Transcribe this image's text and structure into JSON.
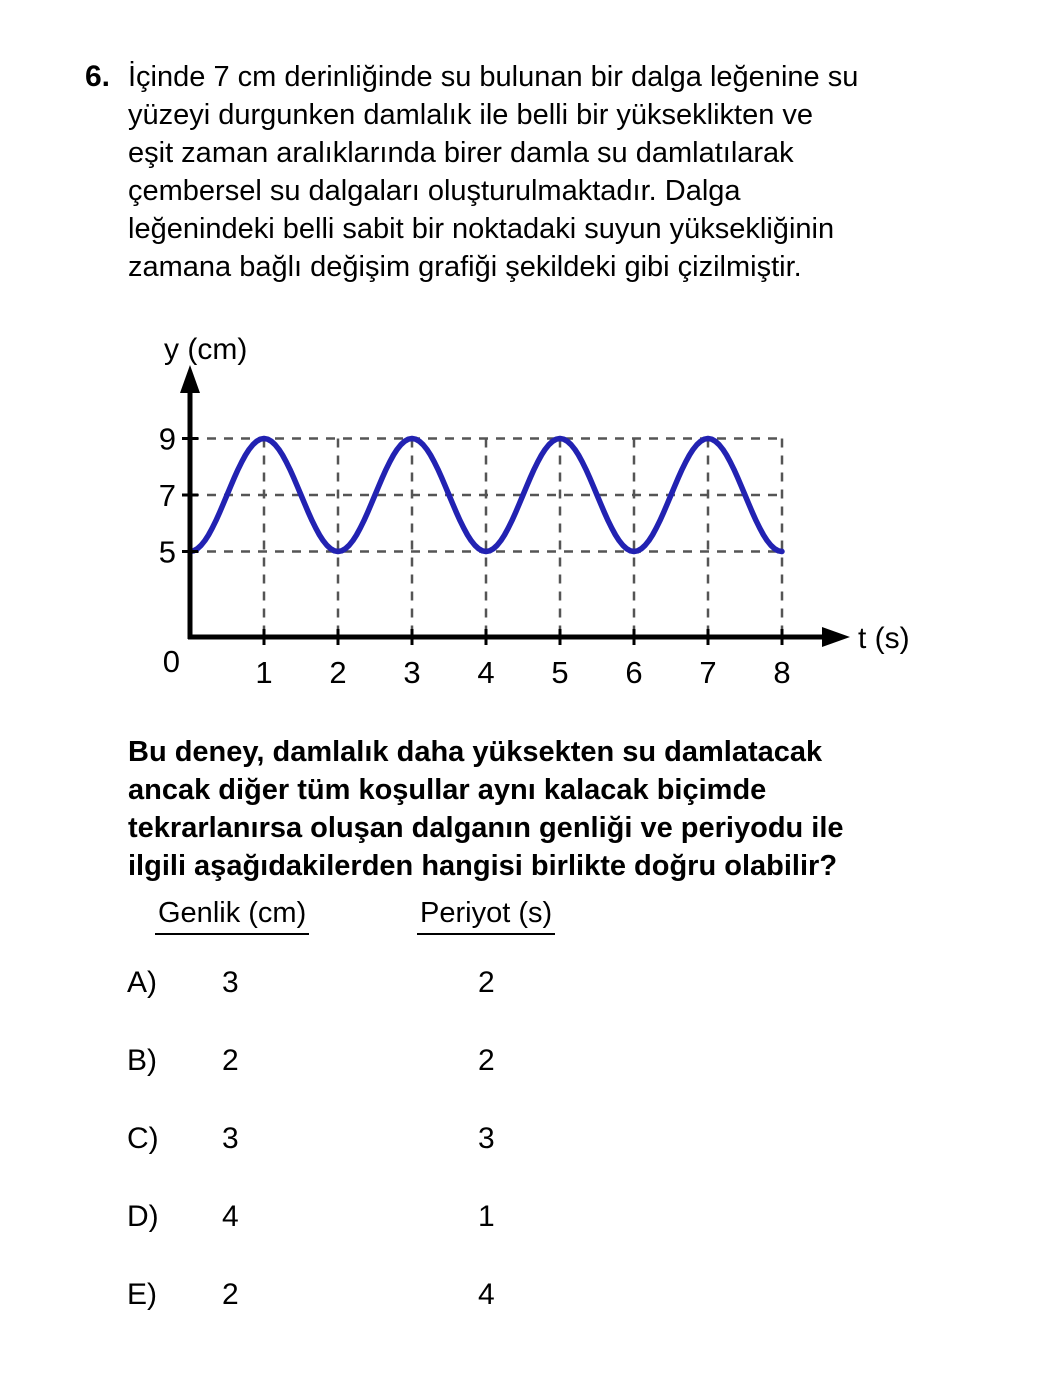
{
  "question": {
    "number": "6.",
    "intro_lines": [
      "İçinde 7 cm derinliğinde su bulunan bir dalga leğenine su",
      "yüzeyi durgunken damlalık ile belli bir yükseklikten ve",
      "eşit zaman aralıklarında birer damla su damlatılarak",
      "çembersel su dalgaları oluşturulmaktadır. Dalga",
      "leğenindeki belli sabit bir noktadaki suyun yüksekliğinin",
      "zamana bağlı değişim grafiği şekildeki gibi çizilmiştir."
    ],
    "prompt_lines": [
      "Bu deney, damlalık daha yüksekten su damlatacak",
      "ancak diğer tüm koşullar aynı kalacak biçimde",
      "tekrarlanırsa oluşan dalganın genliği ve periyodu ile",
      "ilgili aşağıdakilerden hangisi birlikte doğru olabilir?"
    ]
  },
  "options": {
    "col1_header": "Genlik (cm)",
    "col2_header": "Periyot (s)",
    "rows": [
      {
        "label": "A)",
        "genlik": "3",
        "periyot": "2"
      },
      {
        "label": "B)",
        "genlik": "2",
        "periyot": "2"
      },
      {
        "label": "C)",
        "genlik": "3",
        "periyot": "3"
      },
      {
        "label": "D)",
        "genlik": "4",
        "periyot": "1"
      },
      {
        "label": "E)",
        "genlik": "2",
        "periyot": "4"
      }
    ]
  },
  "chart_data": {
    "type": "line",
    "title": "",
    "xlabel": "t (s)",
    "ylabel": "y (cm)",
    "origin_label": "0",
    "x_ticks": [
      1,
      2,
      3,
      4,
      5,
      6,
      7,
      8
    ],
    "y_ticks": [
      5,
      7,
      9
    ],
    "x_range": [
      0,
      8
    ],
    "y_axis_max_drawn": 9,
    "grid": "dashed",
    "legend": "none",
    "curve_color": "#2222b2",
    "wave": {
      "midline_cm": 7,
      "amplitude_cm": 2,
      "period_s": 2,
      "minima_at_t": [
        0,
        2,
        4,
        6,
        8
      ],
      "maxima_at_t": [
        1,
        3,
        5,
        7
      ],
      "function": "y(t) = 7 - 2*cos(pi*t)"
    },
    "sampled_points": [
      [
        0,
        5
      ],
      [
        0.5,
        7
      ],
      [
        1,
        9
      ],
      [
        1.5,
        7
      ],
      [
        2,
        5
      ],
      [
        2.5,
        7
      ],
      [
        3,
        9
      ],
      [
        3.5,
        7
      ],
      [
        4,
        5
      ],
      [
        4.5,
        7
      ],
      [
        5,
        9
      ],
      [
        5.5,
        7
      ],
      [
        6,
        5
      ],
      [
        6.5,
        7
      ],
      [
        7,
        9
      ],
      [
        7.5,
        7
      ],
      [
        8,
        5
      ]
    ]
  }
}
